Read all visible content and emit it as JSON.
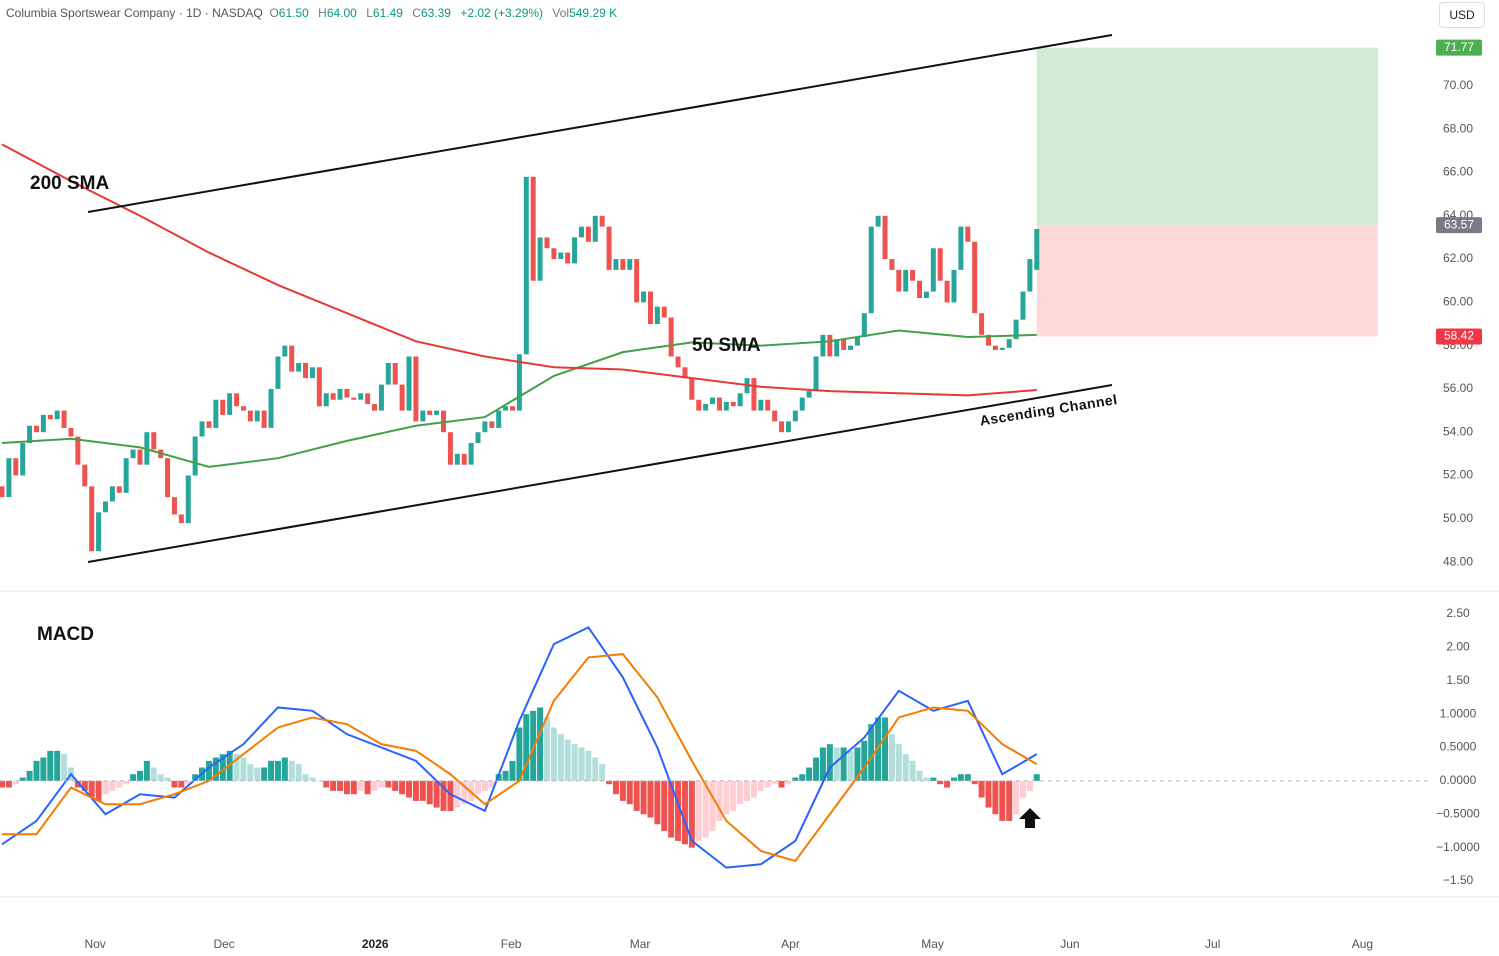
{
  "header": {
    "symbol": "Columbia Sportswear Company · 1D · NASDAQ",
    "o_label": "O",
    "open": "61.50",
    "h_label": "H",
    "high": "64.00",
    "l_label": "L",
    "low": "61.49",
    "c_label": "C",
    "close": "63.39",
    "change": "+2.02 (+3.29%)",
    "vol_label": "Vol",
    "volume": "549.29 K"
  },
  "currency": "USD",
  "chart_data": [
    {
      "type": "candlestick",
      "up_color": "#26a69a",
      "down_color": "#ef5350",
      "open": [
        51.5,
        51.0,
        52.8,
        52.0,
        53.5,
        54.3,
        54.0,
        54.8,
        54.6,
        55.0,
        54.2,
        53.8,
        52.5,
        51.5,
        48.5,
        50.3,
        50.8,
        51.5,
        51.2,
        52.8,
        53.2,
        52.5,
        54.0,
        53.2,
        52.8,
        51.0,
        50.2,
        49.8,
        52.0,
        53.8,
        54.5,
        54.2,
        55.5,
        54.8,
        55.8,
        55.2,
        55.0,
        54.5,
        55.0,
        54.2,
        56.0,
        57.5,
        58.0,
        56.8,
        57.2,
        56.5,
        57.0,
        55.2,
        55.8,
        55.5,
        56.0,
        55.6,
        55.5,
        55.8,
        55.3,
        55.0,
        56.2,
        57.2,
        56.2,
        55.0,
        57.5,
        54.5,
        55.0,
        54.8,
        55.0,
        54.0,
        52.5,
        53.0,
        52.5,
        53.5,
        54.0,
        54.5,
        54.2,
        55.0,
        55.2,
        55.0,
        57.6,
        65.8,
        61.0,
        63.0,
        62.5,
        62.0,
        62.3,
        61.8,
        63.0,
        63.5,
        62.8,
        64.0,
        63.5,
        61.5,
        62.0,
        61.5,
        62.0,
        60.0,
        60.5,
        59.0,
        59.8,
        59.3,
        57.5,
        57.0,
        56.5,
        55.5,
        55.0,
        55.3,
        55.6,
        55.0,
        55.4,
        55.2,
        55.8,
        56.5,
        55.0,
        55.5,
        55.0,
        54.5,
        54.0,
        54.5,
        55.0,
        55.6,
        55.9,
        57.5,
        58.5,
        57.5,
        58.3,
        57.8,
        58.0,
        58.4,
        59.5,
        63.5,
        64.0,
        62.0,
        61.5,
        60.5,
        61.5,
        61.0,
        60.2,
        60.5,
        62.5,
        61.0,
        60.0,
        61.5,
        63.5,
        62.8,
        59.5,
        58.5,
        58.0,
        57.8,
        57.9,
        58.3,
        59.2,
        60.5,
        61.5
      ],
      "close": [
        51.0,
        52.8,
        52.0,
        53.5,
        54.3,
        54.0,
        54.8,
        54.6,
        55.0,
        54.2,
        53.8,
        52.5,
        51.5,
        48.5,
        50.3,
        50.8,
        51.5,
        51.2,
        52.8,
        53.2,
        52.5,
        54.0,
        53.2,
        52.8,
        51.0,
        50.2,
        49.8,
        52.0,
        53.8,
        54.5,
        54.2,
        55.5,
        54.8,
        55.8,
        55.2,
        55.0,
        54.5,
        55.0,
        54.2,
        56.0,
        57.5,
        58.0,
        56.8,
        57.2,
        56.5,
        57.0,
        55.2,
        55.8,
        55.5,
        56.0,
        55.6,
        55.5,
        55.8,
        55.3,
        55.0,
        56.2,
        57.2,
        56.2,
        55.0,
        57.5,
        54.5,
        55.0,
        54.8,
        55.0,
        54.0,
        52.5,
        53.0,
        52.5,
        53.5,
        54.0,
        54.5,
        54.2,
        55.0,
        55.2,
        55.0,
        57.6,
        65.8,
        61.0,
        63.0,
        62.5,
        62.0,
        62.3,
        61.8,
        63.0,
        63.5,
        62.8,
        64.0,
        63.5,
        61.5,
        62.0,
        61.5,
        62.0,
        60.0,
        60.5,
        59.0,
        59.8,
        59.3,
        57.5,
        57.0,
        56.5,
        55.5,
        55.0,
        55.3,
        55.6,
        55.0,
        55.4,
        55.2,
        55.8,
        56.5,
        55.0,
        55.5,
        55.0,
        54.5,
        54.0,
        54.5,
        55.0,
        55.6,
        55.9,
        57.5,
        58.5,
        57.5,
        58.3,
        57.8,
        58.0,
        58.4,
        59.5,
        63.5,
        64.0,
        62.0,
        61.5,
        60.5,
        61.5,
        61.0,
        60.2,
        60.5,
        62.5,
        61.0,
        60.0,
        61.5,
        63.5,
        62.8,
        59.5,
        58.5,
        58.0,
        57.8,
        57.9,
        58.3,
        59.2,
        60.5,
        62.0,
        63.39
      ],
      "series": [
        {
          "name": "50 SMA",
          "color": "#43a047",
          "x": [
            0,
            10,
            20,
            30,
            40,
            50,
            60,
            70,
            80,
            90,
            100,
            110,
            120,
            130,
            140,
            150
          ],
          "values": [
            53.5,
            53.7,
            53.3,
            52.4,
            52.8,
            53.6,
            54.3,
            54.7,
            56.6,
            57.7,
            58.15,
            58.0,
            58.2,
            58.7,
            58.4,
            58.5
          ]
        },
        {
          "name": "200 SMA",
          "color": "#e53935",
          "x": [
            0,
            10,
            20,
            30,
            40,
            50,
            60,
            70,
            80,
            90,
            100,
            110,
            120,
            130,
            140,
            150
          ],
          "values": [
            67.3,
            65.6,
            64.0,
            62.3,
            60.8,
            59.5,
            58.2,
            57.5,
            57.0,
            56.9,
            56.5,
            56.1,
            55.9,
            55.8,
            55.7,
            55.95
          ]
        }
      ],
      "annotations": [
        "200 SMA",
        "50 SMA",
        "Ascending Channel"
      ],
      "position": {
        "target": 71.77,
        "entry": 63.57,
        "stop": 58.42
      },
      "xlim": [
        -0.29,
        207
      ],
      "xticks": [
        {
          "value": 13.5,
          "label": "Nov"
        },
        {
          "value": 32.2,
          "label": "Dec"
        },
        {
          "value": 54.1,
          "label": "2026",
          "bold": true
        },
        {
          "value": 73.8,
          "label": "Feb"
        },
        {
          "value": 92.5,
          "label": "Mar"
        },
        {
          "value": 114.3,
          "label": "Apr"
        },
        {
          "value": 134.9,
          "label": "May"
        },
        {
          "value": 154.8,
          "label": "Jun"
        },
        {
          "value": 175.5,
          "label": "Jul"
        },
        {
          "value": 197.2,
          "label": "Aug"
        }
      ],
      "ylim": [
        46.71,
        73.97
      ],
      "yticks": [
        {
          "value": 48,
          "label": "48.00"
        },
        {
          "value": 50,
          "label": "50.00"
        },
        {
          "value": 52,
          "label": "52.00"
        },
        {
          "value": 54,
          "label": "54.00"
        },
        {
          "value": 56,
          "label": "56.00"
        },
        {
          "value": 58,
          "label": "58.00"
        },
        {
          "value": 60,
          "label": "60.00"
        },
        {
          "value": 62,
          "label": "62.00"
        },
        {
          "value": 64,
          "label": "64.00"
        },
        {
          "value": 66,
          "label": "66.00"
        },
        {
          "value": 68,
          "label": "68.00"
        },
        {
          "value": 70,
          "label": "70.00"
        }
      ],
      "grid": false
    },
    {
      "type": "macd",
      "title": "MACD",
      "histogram": {
        "colors": [
          "#26a69a",
          "#b2dfdb",
          "#ef5350",
          "#ffcdd2"
        ],
        "values": [
          -0.1,
          -0.1,
          -0.05,
          0.05,
          0.15,
          0.3,
          0.35,
          0.45,
          0.45,
          0.4,
          0.2,
          -0.1,
          -0.15,
          -0.25,
          -0.3,
          -0.2,
          -0.15,
          -0.1,
          -0.05,
          0.1,
          0.15,
          0.3,
          0.2,
          0.1,
          0.05,
          -0.1,
          -0.1,
          -0.05,
          0.1,
          0.2,
          0.3,
          0.35,
          0.4,
          0.45,
          0.4,
          0.35,
          0.25,
          0.2,
          0.2,
          0.3,
          0.3,
          0.35,
          0.3,
          0.25,
          0.1,
          0.05,
          0.0,
          -0.1,
          -0.15,
          -0.15,
          -0.2,
          -0.2,
          -0.15,
          -0.2,
          -0.15,
          -0.1,
          -0.1,
          -0.15,
          -0.2,
          -0.25,
          -0.3,
          -0.3,
          -0.35,
          -0.4,
          -0.45,
          -0.45,
          -0.4,
          -0.35,
          -0.3,
          -0.2,
          -0.15,
          -0.1,
          0.1,
          0.15,
          0.3,
          0.8,
          1.0,
          1.05,
          1.1,
          0.95,
          0.8,
          0.7,
          0.62,
          0.55,
          0.5,
          0.45,
          0.35,
          0.25,
          -0.05,
          -0.2,
          -0.3,
          -0.35,
          -0.45,
          -0.5,
          -0.55,
          -0.65,
          -0.75,
          -0.85,
          -0.9,
          -0.95,
          -1.0,
          -0.9,
          -0.85,
          -0.75,
          -0.6,
          -0.5,
          -0.45,
          -0.35,
          -0.3,
          -0.25,
          -0.15,
          -0.1,
          -0.05,
          -0.1,
          -0.05,
          0.05,
          0.1,
          0.2,
          0.35,
          0.5,
          0.55,
          0.5,
          0.5,
          0.45,
          0.5,
          0.6,
          0.85,
          0.95,
          0.95,
          0.7,
          0.55,
          0.4,
          0.3,
          0.15,
          0.05,
          0.05,
          -0.05,
          -0.1,
          0.05,
          0.1,
          0.1,
          -0.05,
          -0.25,
          -0.4,
          -0.5,
          -0.6,
          -0.6,
          -0.5,
          -0.25,
          -0.15,
          0.1
        ]
      },
      "series": [
        {
          "name": "MACD",
          "color": "#2962ff",
          "x": [
            0,
            5,
            10,
            15,
            20,
            25,
            30,
            35,
            40,
            45,
            50,
            55,
            60,
            65,
            70,
            75,
            80,
            85,
            90,
            95,
            100,
            105,
            110,
            115,
            120,
            125,
            130,
            135,
            140,
            145,
            150
          ],
          "values": [
            -0.95,
            -0.6,
            0.1,
            -0.5,
            -0.2,
            -0.25,
            0.2,
            0.55,
            1.1,
            1.05,
            0.7,
            0.5,
            0.3,
            -0.2,
            -0.45,
            0.9,
            2.05,
            2.3,
            1.55,
            0.5,
            -0.9,
            -1.3,
            -1.25,
            -0.9,
            0.2,
            0.65,
            1.35,
            1.05,
            1.2,
            0.1,
            0.4
          ]
        },
        {
          "name": "Signal",
          "color": "#f57c00",
          "x": [
            0,
            5,
            10,
            15,
            20,
            25,
            30,
            35,
            40,
            45,
            50,
            55,
            60,
            65,
            70,
            75,
            80,
            85,
            90,
            95,
            100,
            105,
            110,
            115,
            120,
            125,
            130,
            135,
            140,
            145,
            150
          ],
          "values": [
            -0.8,
            -0.8,
            -0.1,
            -0.35,
            -0.35,
            -0.2,
            0.0,
            0.4,
            0.8,
            0.95,
            0.85,
            0.55,
            0.45,
            0.1,
            -0.35,
            0.0,
            1.2,
            1.85,
            1.9,
            1.25,
            0.3,
            -0.6,
            -1.05,
            -1.2,
            -0.5,
            0.2,
            0.95,
            1.1,
            1.05,
            0.55,
            0.25
          ]
        }
      ],
      "ylim": [
        -1.74,
        2.83
      ],
      "yticks": [
        {
          "value": 2.5,
          "label": "2.50"
        },
        {
          "value": 2,
          "label": "2.00"
        },
        {
          "value": 1.5,
          "label": "1.50"
        },
        {
          "value": 1,
          "label": "1.0000"
        },
        {
          "value": 0.5,
          "label": "0.5000"
        },
        {
          "value": 0,
          "label": "0.0000"
        },
        {
          "value": -0.5,
          "label": "−0.5000"
        },
        {
          "value": -1,
          "label": "−1.0000"
        },
        {
          "value": -1.5,
          "label": "−1.50"
        }
      ]
    }
  ]
}
